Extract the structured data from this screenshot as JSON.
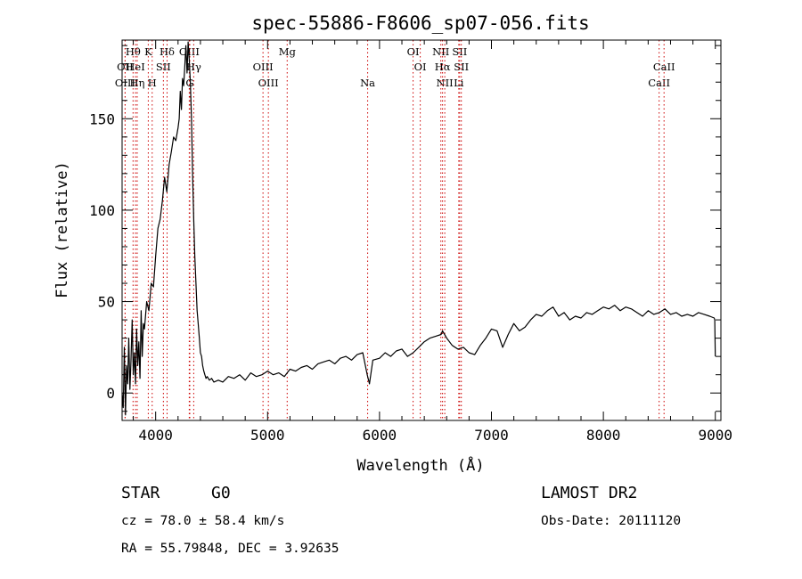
{
  "chart_data": {
    "type": "line",
    "title": "spec-55886-F8606_sp07-056.fits",
    "xlabel": "Wavelength (Å)",
    "ylabel": "Flux (relative)",
    "xlim": [
      3700,
      9050
    ],
    "ylim": [
      -15,
      193
    ],
    "xticks": [
      4000,
      5000,
      6000,
      7000,
      8000,
      9000
    ],
    "yticks": [
      0,
      50,
      100,
      150
    ],
    "grid": false,
    "series": [
      {
        "color": "#000000",
        "x": [
          3700,
          3710,
          3720,
          3730,
          3740,
          3750,
          3760,
          3770,
          3780,
          3790,
          3800,
          3810,
          3820,
          3830,
          3840,
          3850,
          3860,
          3870,
          3880,
          3890,
          3900,
          3920,
          3940,
          3960,
          3980,
          4000,
          4020,
          4040,
          4060,
          4080,
          4100,
          4120,
          4140,
          4160,
          4180,
          4200,
          4210,
          4220,
          4230,
          4240,
          4250,
          4260,
          4270,
          4280,
          4290,
          4300,
          4310,
          4320,
          4330,
          4340,
          4350,
          4360,
          4370,
          4380,
          4390,
          4400,
          4410,
          4420,
          4430,
          4440,
          4450,
          4460,
          4480,
          4500,
          4520,
          4560,
          4600,
          4650,
          4700,
          4750,
          4800,
          4850,
          4900,
          4950,
          5000,
          5050,
          5100,
          5150,
          5200,
          5250,
          5300,
          5350,
          5400,
          5450,
          5500,
          5550,
          5600,
          5650,
          5700,
          5750,
          5800,
          5850,
          5890,
          5910,
          5940,
          6000,
          6050,
          6100,
          6150,
          6200,
          6250,
          6300,
          6350,
          6400,
          6450,
          6500,
          6550,
          6563,
          6600,
          6650,
          6700,
          6750,
          6800,
          6850,
          6900,
          6950,
          7000,
          7050,
          7100,
          7150,
          7200,
          7250,
          7300,
          7350,
          7400,
          7450,
          7500,
          7550,
          7600,
          7650,
          7700,
          7750,
          7800,
          7850,
          7900,
          7950,
          8000,
          8050,
          8100,
          8150,
          8200,
          8250,
          8300,
          8350,
          8400,
          8450,
          8500,
          8550,
          8600,
          8650,
          8700,
          8750,
          8800,
          8850,
          8900,
          8950,
          8990,
          8995,
          9000
        ],
        "y": [
          0,
          -8,
          25,
          -12,
          15,
          5,
          30,
          2,
          18,
          40,
          10,
          22,
          5,
          35,
          15,
          28,
          8,
          45,
          20,
          38,
          35,
          50,
          45,
          60,
          58,
          75,
          90,
          95,
          105,
          118,
          110,
          125,
          132,
          140,
          138,
          145,
          150,
          165,
          155,
          172,
          168,
          178,
          190,
          175,
          192,
          182,
          170,
          150,
          120,
          95,
          75,
          60,
          45,
          38,
          30,
          22,
          20,
          15,
          12,
          10,
          8,
          9,
          7,
          8,
          6,
          7,
          6,
          9,
          8,
          10,
          7,
          11,
          9,
          10,
          12,
          10,
          11,
          9,
          13,
          12,
          14,
          15,
          13,
          16,
          17,
          18,
          16,
          19,
          20,
          18,
          21,
          22,
          10,
          5,
          18,
          19,
          22,
          20,
          23,
          24,
          20,
          22,
          25,
          28,
          30,
          31,
          32,
          34,
          30,
          26,
          24,
          25,
          22,
          21,
          26,
          30,
          35,
          34,
          25,
          32,
          38,
          34,
          36,
          40,
          43,
          42,
          45,
          47,
          42,
          44,
          40,
          42,
          41,
          44,
          43,
          45,
          47,
          46,
          48,
          45,
          47,
          46,
          44,
          42,
          45,
          43,
          44,
          46,
          43,
          44,
          42,
          43,
          42,
          44,
          43,
          42,
          41,
          40,
          20
        ]
      }
    ],
    "line_markers": [
      {
        "label": "Hθ",
        "wavelength": 3798,
        "row": 1
      },
      {
        "label": "OII",
        "wavelength": 3727,
        "row": 2
      },
      {
        "label": "OIII",
        "wavelength": 3727,
        "row": 3
      },
      {
        "label": "HeI",
        "wavelength": 3820,
        "row": 2
      },
      {
        "label": "Hη",
        "wavelength": 3835,
        "row": 3
      },
      {
        "label": "K",
        "wavelength": 3934,
        "row": 1
      },
      {
        "label": "H",
        "wavelength": 3969,
        "row": 3
      },
      {
        "label": "SII",
        "wavelength": 4069,
        "row": 2
      },
      {
        "label": "Hδ",
        "wavelength": 4102,
        "row": 1
      },
      {
        "label": "OIII",
        "wavelength": 4300,
        "row": 1
      },
      {
        "label": "Hγ",
        "wavelength": 4340,
        "row": 2
      },
      {
        "label": "G",
        "wavelength": 4305,
        "row": 3
      },
      {
        "label": "OIII",
        "wavelength": 4959,
        "row": 2
      },
      {
        "label": "OIII",
        "wavelength": 5007,
        "row": 3
      },
      {
        "label": "Mg",
        "wavelength": 5175,
        "row": 1
      },
      {
        "label": "Na",
        "wavelength": 5894,
        "row": 3
      },
      {
        "label": "OI",
        "wavelength": 6300,
        "row": 1
      },
      {
        "label": "OI",
        "wavelength": 6364,
        "row": 2
      },
      {
        "label": "NII",
        "wavelength": 6548,
        "row": 1
      },
      {
        "label": "NII",
        "wavelength": 6583,
        "row": 3
      },
      {
        "label": "Hα",
        "wavelength": 6563,
        "row": 2
      },
      {
        "label": "SII",
        "wavelength": 6716,
        "row": 1
      },
      {
        "label": "SII",
        "wavelength": 6731,
        "row": 2
      },
      {
        "label": "Li",
        "wavelength": 6708,
        "row": 3
      },
      {
        "label": "CaII",
        "wavelength": 8498,
        "row": 3
      },
      {
        "label": "CaII",
        "wavelength": 8542,
        "row": 2
      }
    ],
    "marker_color": "#cc0000"
  },
  "info": {
    "class_label": "STAR",
    "subclass": "G0",
    "survey": "LAMOST DR2",
    "redshift_text": "cz = 78.0 ± 58.4 km/s",
    "obsdate_text": "Obs-Date: 20111120",
    "coords_text": "RA =  55.79848, DEC =    3.92635"
  }
}
